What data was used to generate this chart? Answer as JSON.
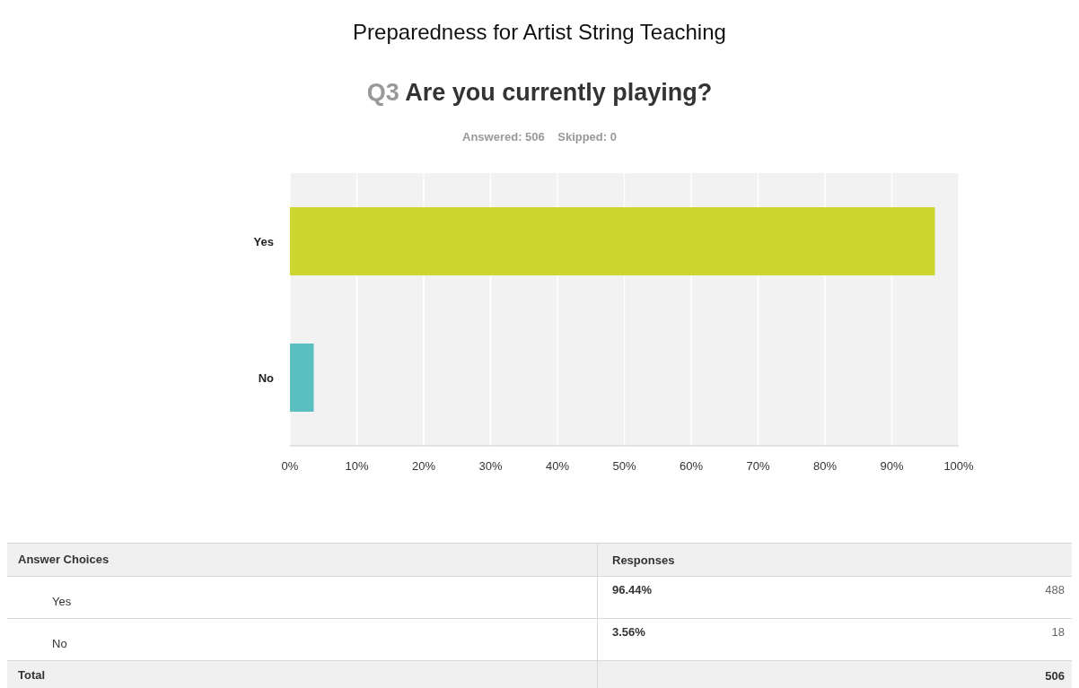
{
  "chart_data": {
    "type": "bar",
    "orientation": "horizontal",
    "title": "Preparedness for Artist String Teaching",
    "subtitle": "Q3 Are you currently playing?",
    "categories": [
      "Yes",
      "No"
    ],
    "values": [
      96.44,
      3.56
    ],
    "colors": [
      "#cdd52f",
      "#5bbfc0"
    ],
    "xlim": [
      0,
      100
    ],
    "xticks": [
      {
        "value": 0,
        "label": "0%"
      },
      {
        "value": 10,
        "label": "10%"
      },
      {
        "value": 20,
        "label": "20%"
      },
      {
        "value": 30,
        "label": "30%"
      },
      {
        "value": 40,
        "label": "40%"
      },
      {
        "value": 50,
        "label": "50%"
      },
      {
        "value": 60,
        "label": "60%"
      },
      {
        "value": 70,
        "label": "70%"
      },
      {
        "value": 80,
        "label": "80%"
      },
      {
        "value": 90,
        "label": "90%"
      },
      {
        "value": 100,
        "label": "100%"
      }
    ],
    "grid": "x",
    "annotations": [
      "Answered: 506    Skipped: 0",
      "Answer Choices",
      "Responses",
      "96.44%",
      "488",
      "3.56%",
      "18",
      "Total",
      "506"
    ]
  }
}
